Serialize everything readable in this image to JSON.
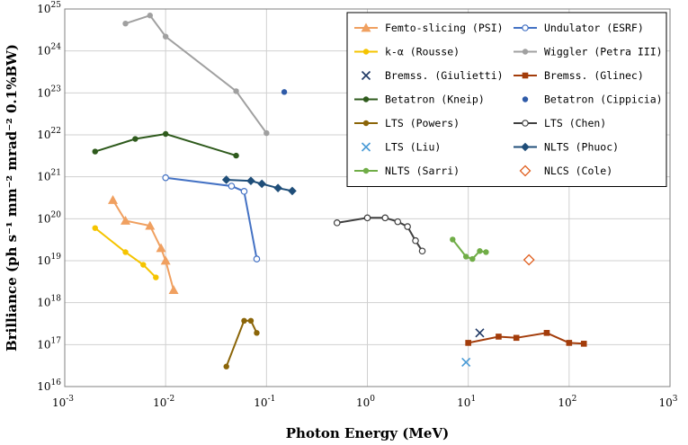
{
  "chart_data": {
    "type": "scatter",
    "title": "",
    "xlabel": "Photon Energy (MeV)",
    "ylabel": "Brilliance (ph s⁻¹ mm⁻² mrad⁻² 0.1%BW)",
    "xscale": "log",
    "yscale": "log",
    "xlim": [
      0.001,
      1000
    ],
    "ylim": [
      1e+16,
      1e+25
    ],
    "grid": true,
    "legend_position": "top-right",
    "x_tick_labels": [
      {
        "base": "10",
        "exp": "-3"
      },
      {
        "base": "10",
        "exp": "-2"
      },
      {
        "base": "10",
        "exp": "-1"
      },
      {
        "base": "10",
        "exp": "0"
      },
      {
        "base": "10",
        "exp": "1"
      },
      {
        "base": "10",
        "exp": "2"
      },
      {
        "base": "10",
        "exp": "3"
      }
    ],
    "y_tick_labels": [
      {
        "base": "10",
        "exp": "16"
      },
      {
        "base": "10",
        "exp": "17"
      },
      {
        "base": "10",
        "exp": "18"
      },
      {
        "base": "10",
        "exp": "19"
      },
      {
        "base": "10",
        "exp": "20"
      },
      {
        "base": "10",
        "exp": "21"
      },
      {
        "base": "10",
        "exp": "22"
      },
      {
        "base": "10",
        "exp": "23"
      },
      {
        "base": "10",
        "exp": "24"
      },
      {
        "base": "10",
        "exp": "25"
      }
    ],
    "series": [
      {
        "name": "Femto-slicing (PSI)",
        "color": "#F0A060",
        "marker": "triangle",
        "line": true,
        "points": [
          [
            0.003,
            2.8e+20
          ],
          [
            0.004,
            9e+19
          ],
          [
            0.007,
            6.8e+19
          ],
          [
            0.009,
            2e+19
          ],
          [
            0.01,
            1e+19
          ],
          [
            0.012,
            2e+18
          ]
        ]
      },
      {
        "name": "Undulator (ESRF)",
        "color": "#4472C4",
        "marker": "circle-open",
        "line": true,
        "points": [
          [
            0.01,
            9.5e+20
          ],
          [
            0.045,
            6e+20
          ],
          [
            0.06,
            4.5e+20
          ],
          [
            0.08,
            1.1e+19
          ]
        ]
      },
      {
        "name": "k-α (Rousse)",
        "color": "#F5C400",
        "marker": "circle",
        "line": true,
        "points": [
          [
            0.002,
            6e+19
          ],
          [
            0.004,
            1.6e+19
          ],
          [
            0.006,
            8e+18
          ],
          [
            0.008,
            4e+18
          ]
        ]
      },
      {
        "name": "Wiggler (Petra III)",
        "color": "#A0A0A0",
        "marker": "circle",
        "line": true,
        "points": [
          [
            0.004,
            4.5e+24
          ],
          [
            0.007,
            7e+24
          ],
          [
            0.01,
            2.2e+24
          ],
          [
            0.05,
            1.1e+23
          ],
          [
            0.1,
            1.1e+22
          ]
        ]
      },
      {
        "name": "Bremss. (Giulietti)",
        "color": "#1F3864",
        "marker": "x",
        "line": false,
        "points": [
          [
            13,
            1.9e+17
          ]
        ]
      },
      {
        "name": "Bremss. (Glinec)",
        "color": "#A33C0A",
        "marker": "square",
        "line": true,
        "points": [
          [
            10,
            1.1e+17
          ],
          [
            20,
            1.55e+17
          ],
          [
            30,
            1.45e+17
          ],
          [
            60,
            1.9e+17
          ],
          [
            100,
            1.1e+17
          ],
          [
            140,
            1.05e+17
          ]
        ]
      },
      {
        "name": "Betatron (Kneip)",
        "color": "#2E5A1C",
        "marker": "circle",
        "line": true,
        "points": [
          [
            0.002,
            4e+21
          ],
          [
            0.005,
            8e+21
          ],
          [
            0.01,
            1.05e+22
          ],
          [
            0.05,
            3.2e+21
          ]
        ]
      },
      {
        "name": "Betatron (Cippicia)",
        "color": "#2F5BA8",
        "marker": "circle",
        "line": false,
        "points": [
          [
            0.15,
            1.05e+23
          ]
        ]
      },
      {
        "name": "LTS (Powers)",
        "color": "#8B6508",
        "marker": "circle",
        "line": true,
        "points": [
          [
            0.04,
            3e+16
          ],
          [
            0.06,
            3.7e+17
          ],
          [
            0.07,
            3.7e+17
          ],
          [
            0.08,
            1.9e+17
          ]
        ]
      },
      {
        "name": "LTS (Chen)",
        "color": "#404040",
        "marker": "circle-open",
        "line": true,
        "points": [
          [
            0.5,
            8e+19
          ],
          [
            1,
            1.05e+20
          ],
          [
            1.5,
            1.05e+20
          ],
          [
            2,
            8.5e+19
          ],
          [
            2.5,
            6.5e+19
          ],
          [
            3,
            3e+19
          ],
          [
            3.5,
            1.7e+19
          ]
        ]
      },
      {
        "name": "LTS (Liu)",
        "color": "#4A9BD6",
        "marker": "x",
        "line": false,
        "points": [
          [
            9.5,
            3.8e+16
          ]
        ]
      },
      {
        "name": "NLTS (Phuoc)",
        "color": "#1F4E79",
        "marker": "diamond",
        "line": true,
        "points": [
          [
            0.04,
            8.5e+20
          ],
          [
            0.07,
            8e+20
          ],
          [
            0.09,
            6.8e+20
          ],
          [
            0.13,
            5.4e+20
          ],
          [
            0.18,
            4.6e+20
          ]
        ]
      },
      {
        "name": "NLTS (Sarri)",
        "color": "#70AD47",
        "marker": "circle",
        "line": true,
        "points": [
          [
            7,
            3.2e+19
          ],
          [
            9.5,
            1.25e+19
          ],
          [
            11,
            1.1e+19
          ],
          [
            13,
            1.7e+19
          ],
          [
            15,
            1.6e+19
          ]
        ]
      },
      {
        "name": "NLCS (Cole)",
        "color": "#E06020",
        "marker": "diamond-open",
        "line": false,
        "points": [
          [
            40,
            1.05e+19
          ]
        ]
      }
    ]
  }
}
